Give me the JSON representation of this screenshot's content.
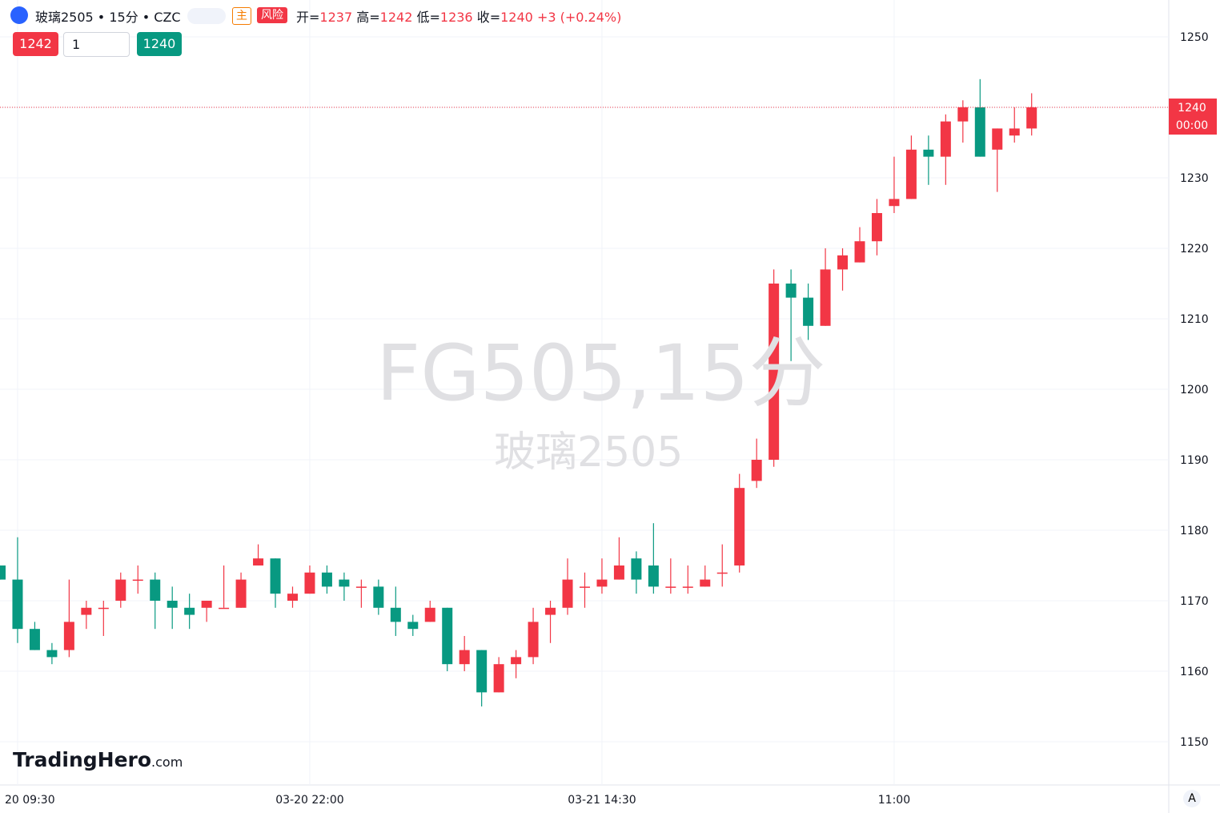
{
  "header": {
    "symbol": "玻璃2505 • 15分 • CZC",
    "tag_main": "主",
    "tag_risk": "风险",
    "ohlc": [
      {
        "label": "开=",
        "value": "1237"
      },
      {
        "label": "高=",
        "value": "1242"
      },
      {
        "label": "低=",
        "value": "1236"
      },
      {
        "label": "收=",
        "value": "1240"
      }
    ],
    "change": "+3 (+0.24%)"
  },
  "trade": {
    "sell": "1242",
    "quantity": "1",
    "buy": "1240"
  },
  "watermark": {
    "line1": "FG505,15分",
    "line2": "玻璃2505"
  },
  "logo": {
    "brand": "TradingHero",
    "suffix": ".com"
  },
  "axis_button": "A",
  "chart_data": {
    "type": "candlestick",
    "categories": [
      null,
      "20 09:30",
      null,
      null,
      null,
      null,
      null,
      null,
      null,
      null,
      null,
      null,
      null,
      null,
      null,
      null,
      null,
      null,
      "03-20 22:00",
      null,
      null,
      null,
      null,
      null,
      null,
      null,
      null,
      null,
      null,
      null,
      null,
      null,
      null,
      null,
      null,
      "03-21 14:30",
      null,
      null,
      null,
      null,
      null,
      null,
      null,
      null,
      null,
      null,
      null,
      null,
      null,
      null,
      null,
      null,
      "11:00",
      null,
      null,
      null,
      null,
      null,
      null,
      null,
      null
    ],
    "series": [
      {
        "up_color": "#f23645",
        "down_color": "#089981",
        "open": [
          1175,
          1173,
          1166,
          1163,
          1163,
          1168,
          1169,
          1170,
          1173,
          1173,
          1170,
          1169,
          1169,
          1169,
          1169,
          1175,
          1176,
          1170,
          1171,
          1174,
          1173,
          1172,
          1172,
          1169,
          1167,
          1167,
          1169,
          1161,
          1163,
          1157,
          1161,
          1162,
          1168,
          1169,
          1172,
          1172,
          1173,
          1176,
          1175,
          1172,
          1172,
          1172,
          1174,
          1175,
          1187,
          1190,
          1215,
          1213,
          1209,
          1217,
          1218,
          1221,
          1226,
          1227,
          1234,
          1233,
          1238,
          1240,
          1234,
          1236,
          1237
        ],
        "high": [
          1175,
          1179,
          1167,
          1164,
          1173,
          1170,
          1170,
          1174,
          1175,
          1174,
          1172,
          1171,
          1170,
          1175,
          1174,
          1178,
          1176,
          1172,
          1175,
          1175,
          1174,
          1173,
          1173,
          1172,
          1168,
          1170,
          1169,
          1165,
          1163,
          1162,
          1163,
          1169,
          1170,
          1176,
          1174,
          1176,
          1179,
          1177,
          1181,
          1176,
          1175,
          1175,
          1178,
          1188,
          1193,
          1217,
          1217,
          1215,
          1220,
          1220,
          1223,
          1227,
          1233,
          1236,
          1236,
          1239,
          1241,
          1244,
          1237,
          1240,
          1242
        ],
        "low": [
          1173,
          1164,
          1163,
          1161,
          1162,
          1166,
          1165,
          1169,
          1171,
          1166,
          1166,
          1166,
          1167,
          1169,
          1169,
          1175,
          1169,
          1169,
          1171,
          1171,
          1170,
          1169,
          1168,
          1165,
          1165,
          1167,
          1160,
          1160,
          1155,
          1157,
          1159,
          1161,
          1164,
          1168,
          1169,
          1171,
          1173,
          1171,
          1171,
          1171,
          1171,
          1172,
          1172,
          1174,
          1186,
          1189,
          1204,
          1207,
          1209,
          1214,
          1218,
          1219,
          1225,
          1227,
          1229,
          1229,
          1235,
          1233,
          1228,
          1235,
          1236
        ],
        "close": [
          1173,
          1166,
          1163,
          1162,
          1167,
          1169,
          1169,
          1173,
          1173,
          1170,
          1169,
          1168,
          1170,
          1169,
          1173,
          1176,
          1171,
          1171,
          1174,
          1172,
          1172,
          1172,
          1169,
          1167,
          1166,
          1169,
          1161,
          1163,
          1157,
          1161,
          1162,
          1167,
          1169,
          1173,
          1172,
          1173,
          1175,
          1173,
          1172,
          1172,
          1172,
          1173,
          1174,
          1186,
          1190,
          1215,
          1213,
          1209,
          1217,
          1219,
          1221,
          1225,
          1227,
          1234,
          1233,
          1238,
          1240,
          1233,
          1237,
          1237,
          1240
        ]
      }
    ],
    "ylim": [
      1143.86,
      1255.23
    ],
    "yticks": [
      1150,
      1160,
      1170,
      1180,
      1190,
      1200,
      1210,
      1220,
      1230,
      1240,
      1250
    ],
    "grid": true,
    "last_price": 1240,
    "countdown": "00:00"
  }
}
